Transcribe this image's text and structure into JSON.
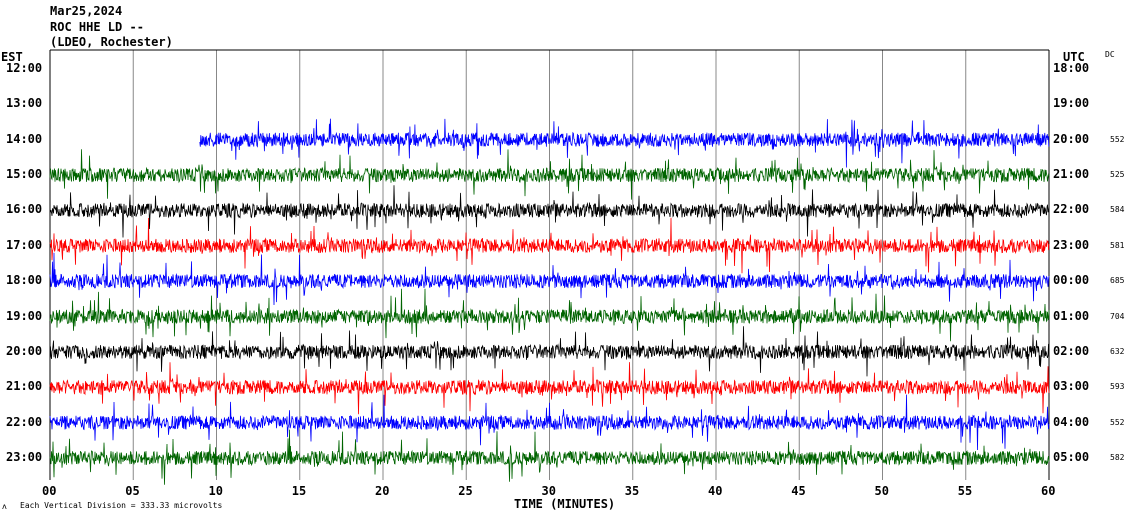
{
  "header": {
    "date": "Mar25,2024",
    "station": "ROC HHE LD --",
    "network": "(LDEO, Rochester)"
  },
  "left_axis_label": "EST",
  "right_axis_label": "UTC",
  "dc_label": "DC",
  "footer": {
    "symbol": "ʌ",
    "scale_text": "Each Vertical Division =  333.33 microvolts"
  },
  "chart_data": {
    "type": "line",
    "xlabel": "TIME (MINUTES)",
    "xlim": [
      0,
      60
    ],
    "x_ticks": [
      "00",
      "05",
      "10",
      "15",
      "20",
      "25",
      "30",
      "35",
      "40",
      "45",
      "50",
      "55",
      "60"
    ],
    "grid": "vertical every 5 minutes",
    "rows": [
      {
        "est": "12:00",
        "utc": "18:00",
        "dc": "",
        "color": "#000000",
        "start_minute": null
      },
      {
        "est": "13:00",
        "utc": "19:00",
        "dc": "",
        "color": "#ff0000",
        "start_minute": null
      },
      {
        "est": "14:00",
        "utc": "20:00",
        "dc": "552",
        "color": "#0000ff",
        "start_minute": 9
      },
      {
        "est": "15:00",
        "utc": "21:00",
        "dc": "525",
        "color": "#006400",
        "start_minute": 0
      },
      {
        "est": "16:00",
        "utc": "22:00",
        "dc": "584",
        "color": "#000000",
        "start_minute": 0
      },
      {
        "est": "17:00",
        "utc": "23:00",
        "dc": "581",
        "color": "#ff0000",
        "start_minute": 0
      },
      {
        "est": "18:00",
        "utc": "00:00",
        "dc": "685",
        "color": "#0000ff",
        "start_minute": 0
      },
      {
        "est": "19:00",
        "utc": "01:00",
        "dc": "704",
        "color": "#006400",
        "start_minute": 0
      },
      {
        "est": "20:00",
        "utc": "02:00",
        "dc": "632",
        "color": "#000000",
        "start_minute": 0
      },
      {
        "est": "21:00",
        "utc": "03:00",
        "dc": "593",
        "color": "#ff0000",
        "start_minute": 0
      },
      {
        "est": "22:00",
        "utc": "04:00",
        "dc": "552",
        "color": "#0000ff",
        "start_minute": 0
      },
      {
        "est": "23:00",
        "utc": "05:00",
        "dc": "582",
        "color": "#006400",
        "start_minute": 0
      }
    ]
  }
}
